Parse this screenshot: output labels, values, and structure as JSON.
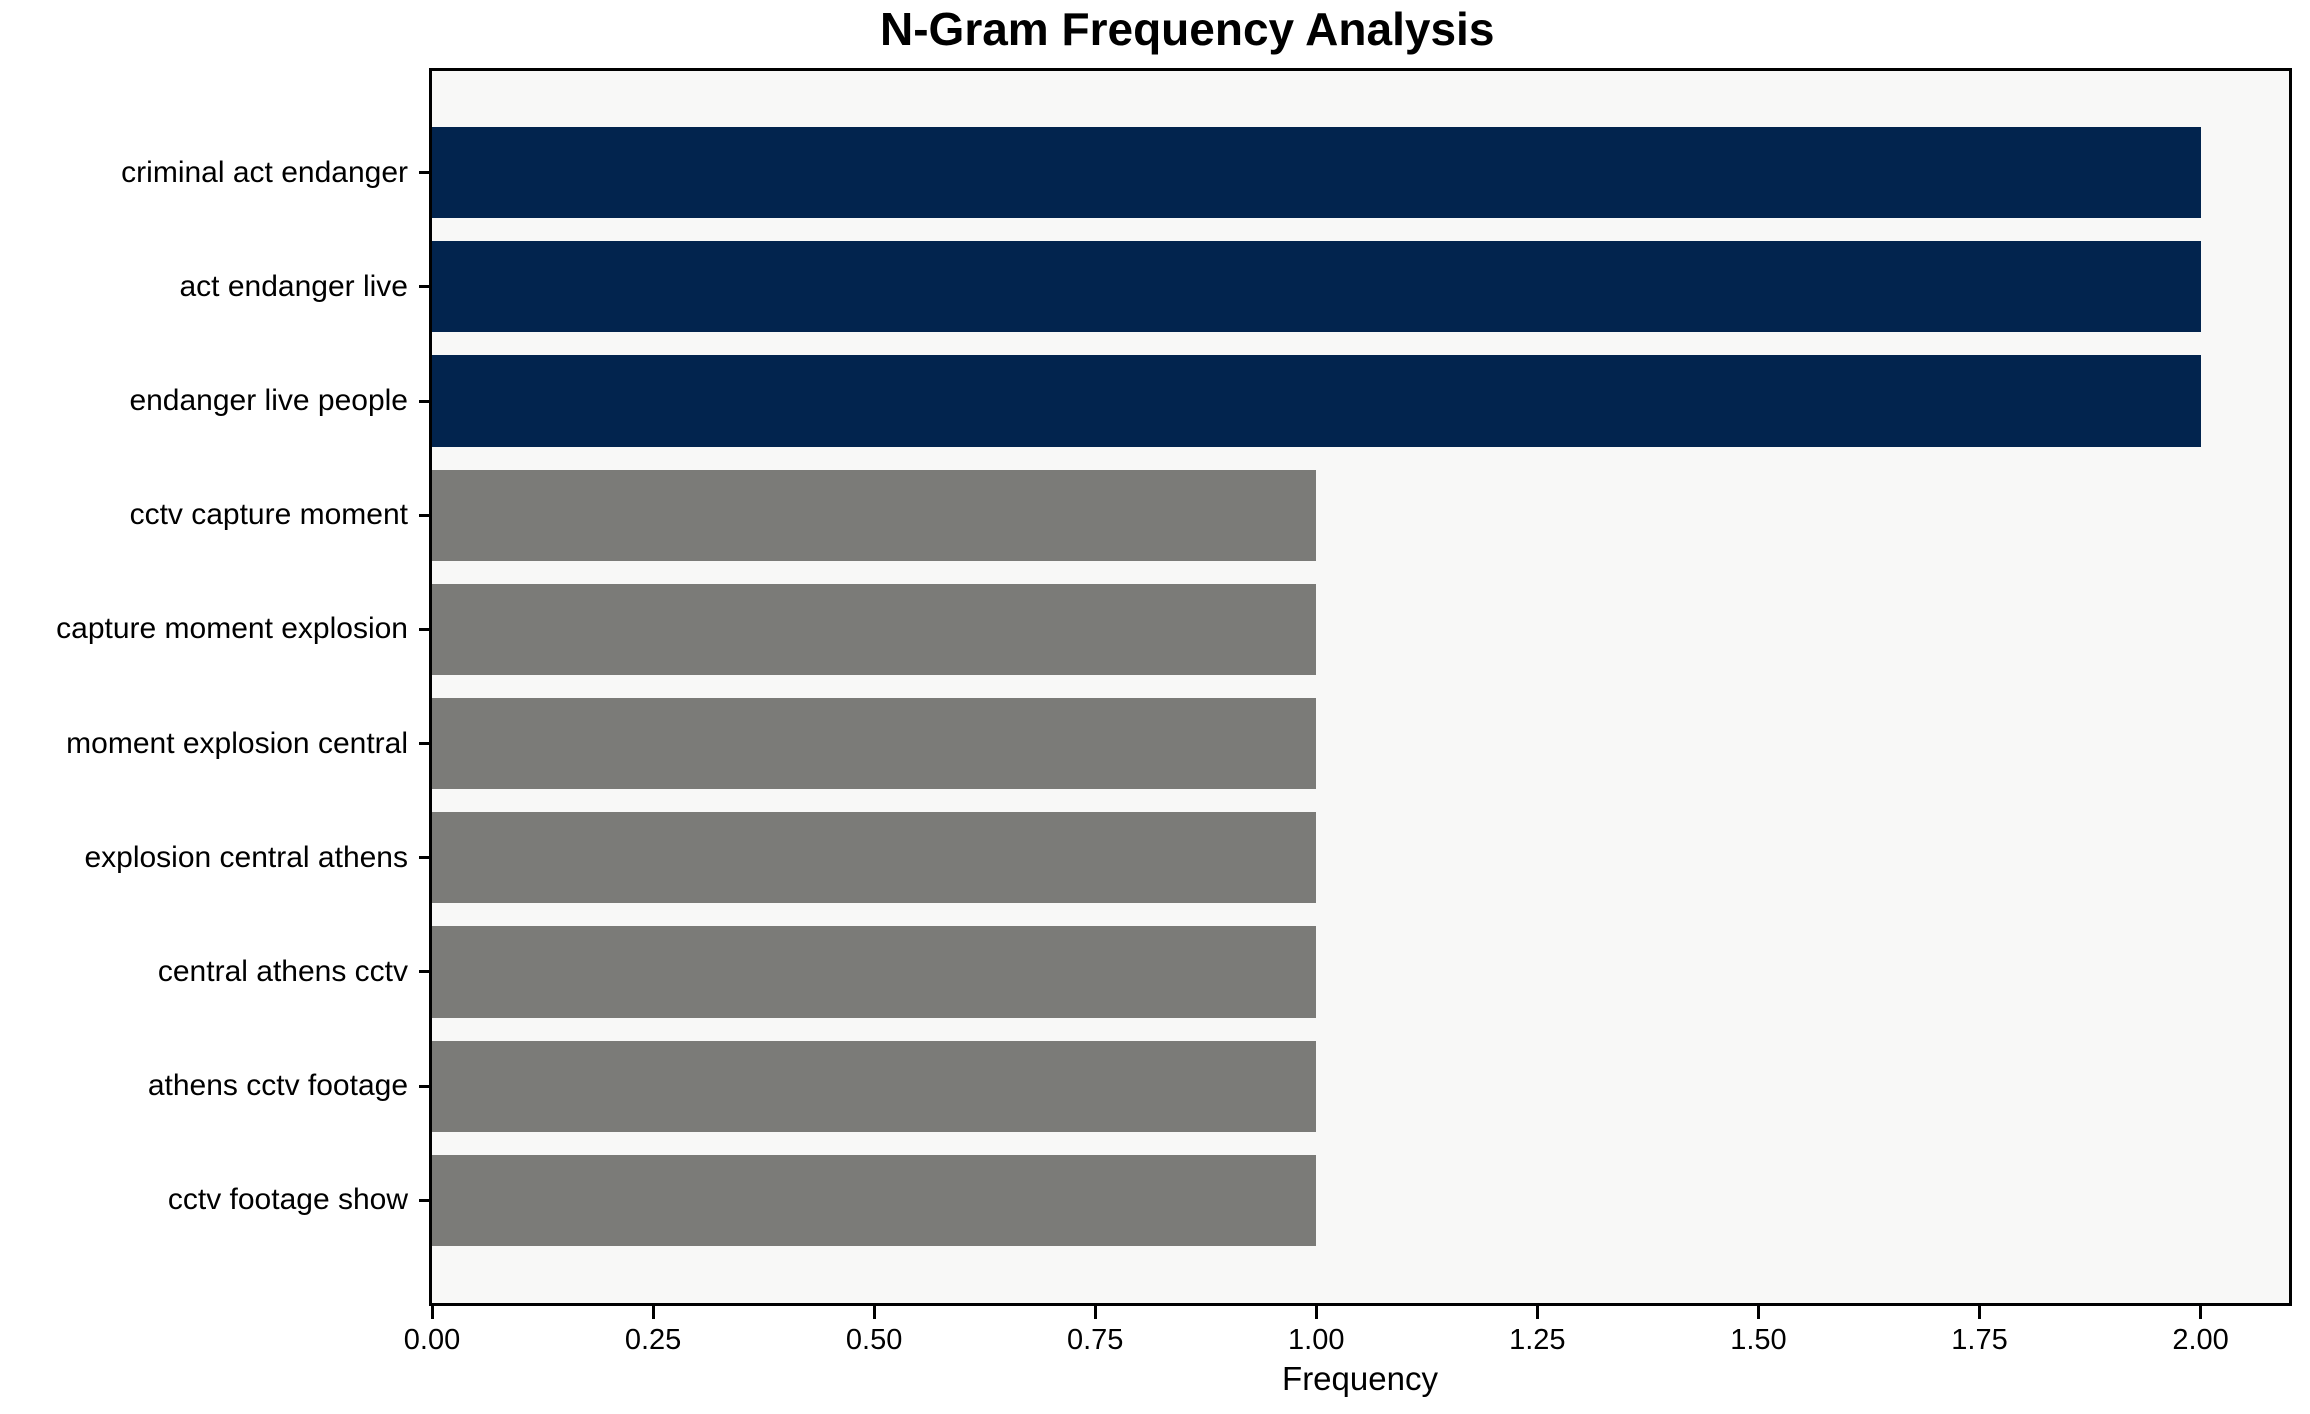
{
  "chart_data": {
    "type": "bar",
    "orientation": "horizontal",
    "title": "N-Gram Frequency Analysis",
    "xlabel": "Frequency",
    "ylabel": "",
    "grid": false,
    "legend": null,
    "plot_background": "#f8f8f7",
    "figure_background": "#ffffff",
    "highlight_color": "#02244e",
    "default_color": "#7b7b78",
    "categories": [
      "criminal act endanger",
      "act endanger live",
      "endanger live people",
      "cctv capture moment",
      "capture moment explosion",
      "moment explosion central",
      "explosion central athens",
      "central athens cctv",
      "athens cctv footage",
      "cctv footage show"
    ],
    "values": [
      2,
      2,
      2,
      1,
      1,
      1,
      1,
      1,
      1,
      1
    ],
    "bar_colors": [
      "#02244e",
      "#02244e",
      "#02244e",
      "#7b7b78",
      "#7b7b78",
      "#7b7b78",
      "#7b7b78",
      "#7b7b78",
      "#7b7b78",
      "#7b7b78"
    ],
    "xlim": [
      0,
      2.1
    ],
    "xticks": [
      {
        "label": "0.00",
        "value": 0.0
      },
      {
        "label": "0.25",
        "value": 0.25
      },
      {
        "label": "0.50",
        "value": 0.5
      },
      {
        "label": "0.75",
        "value": 0.75
      },
      {
        "label": "1.00",
        "value": 1.0
      },
      {
        "label": "1.25",
        "value": 1.25
      },
      {
        "label": "1.50",
        "value": 1.5
      },
      {
        "label": "1.75",
        "value": 1.75
      },
      {
        "label": "2.00",
        "value": 2.0
      }
    ]
  }
}
